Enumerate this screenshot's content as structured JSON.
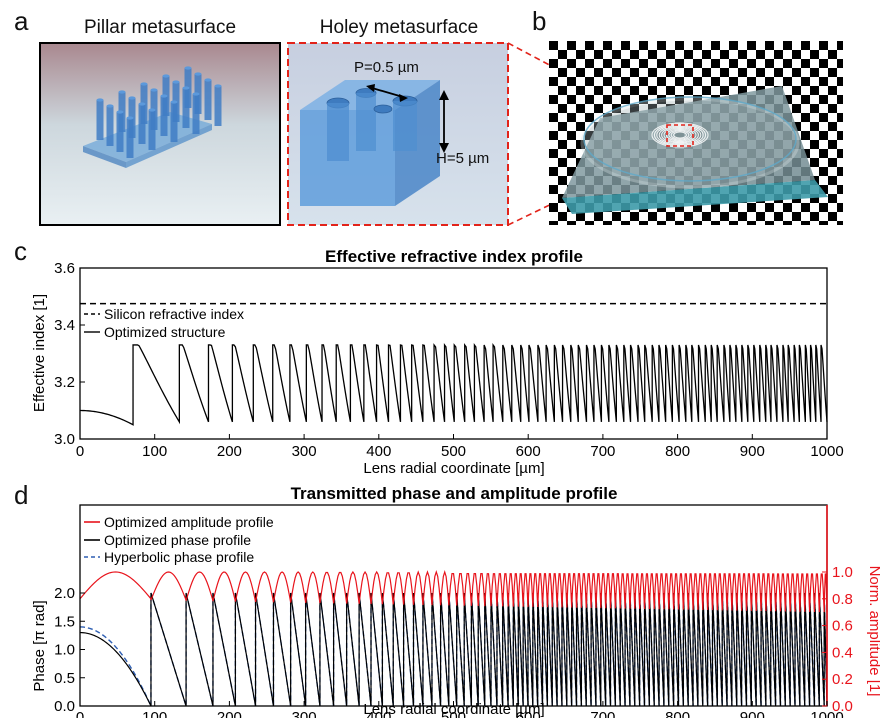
{
  "panel_labels": {
    "a": "a",
    "b": "b",
    "c": "c",
    "d": "d"
  },
  "panel_a": {
    "left_title": "Pillar metasurface",
    "right_title": "Holey metasurface",
    "period_label": "P=0.5 µm",
    "height_label": "H=5 µm"
  },
  "chart_data": [
    {
      "type": "line",
      "title": "Effective refractive index profile",
      "xlabel": "Lens radial coordinate [µm]",
      "ylabel": "Effective index [1]",
      "xlim": [
        0,
        1000
      ],
      "ylim": [
        3.0,
        3.6
      ],
      "xticks": [
        "0",
        "100",
        "200",
        "300",
        "400",
        "500",
        "600",
        "700",
        "800",
        "900",
        "1000"
      ],
      "yticks": [
        "3.0",
        "3.2",
        "3.4",
        "3.6"
      ],
      "legend": "upper-left",
      "series": [
        {
          "name": "Silicon refractive index",
          "style": "dashed",
          "color": "#000000",
          "constant": 3.475
        },
        {
          "name": "Optimized structure",
          "style": "solid",
          "color": "#000000",
          "start": 3.1,
          "first_drop": 3.05,
          "peak": 3.33,
          "trough": 3.06,
          "zone_edges": [
            71,
            133,
            172,
            204,
            232,
            258,
            281,
            303,
            324,
            343,
            362,
            380,
            397,
            413,
            429,
            444,
            459,
            474,
            488,
            501,
            515,
            528,
            541,
            553,
            566,
            578,
            590,
            601,
            613,
            624,
            635,
            646,
            657,
            667,
            678,
            688,
            698,
            708,
            718,
            728,
            737,
            747,
            756,
            766,
            775,
            784,
            793,
            802,
            811,
            819,
            828,
            837,
            845,
            853,
            862,
            870,
            878,
            886,
            894,
            902,
            910,
            918,
            925,
            933,
            941,
            948,
            956,
            963,
            971,
            978,
            985,
            992,
            1000
          ]
        }
      ]
    },
    {
      "type": "line",
      "title": "Transmitted phase and amplitude profile",
      "xlabel": "Lens radial coordinate [µm]",
      "ylabel_left": "Phase [π rad]",
      "ylabel_right": "Norm. amplitude [1]",
      "xlim": [
        0,
        1000
      ],
      "ylim_left": [
        0,
        2.0
      ],
      "ylim_right": [
        0,
        1.0
      ],
      "xticks": [
        "0",
        "100",
        "200",
        "300",
        "400",
        "500",
        "600",
        "700",
        "800",
        "900",
        "1000"
      ],
      "yticks_left": [
        "0.0",
        "0.5",
        "1.0",
        "1.5",
        "2.0"
      ],
      "yticks_right": [
        "0.0",
        "0.2",
        "0.4",
        "0.6",
        "0.8",
        "1.0"
      ],
      "legend": "upper-left",
      "series": [
        {
          "name": "Optimized amplitude profile",
          "axis": "right",
          "color": "#e8141c",
          "max": 1.0,
          "min_start": 0.8,
          "min_end": 0.7
        },
        {
          "name": "Optimized phase profile",
          "axis": "left",
          "color": "#000000",
          "start": 1.3,
          "wrap_top": 2.0,
          "wrap_bottom": 0.0
        },
        {
          "name": "Hyperbolic phase profile",
          "axis": "left",
          "style": "dashed",
          "color": "#2f5fb3",
          "start": 1.4
        }
      ]
    }
  ]
}
